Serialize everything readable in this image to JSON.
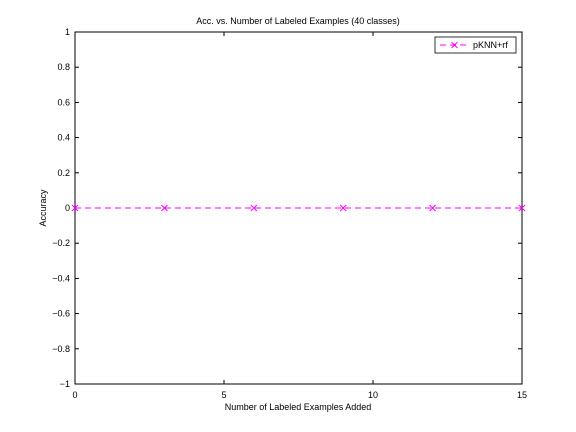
{
  "chart_data": {
    "type": "line",
    "title": "Acc. vs. Number of Labeled Examples (40 classes)",
    "xlabel": "Number of Labeled Examples Added",
    "ylabel": "Accuracy",
    "xlim": [
      0,
      15
    ],
    "ylim": [
      -1,
      1
    ],
    "xticks": [
      0,
      5,
      10,
      15
    ],
    "yticks": [
      -1,
      -0.8,
      -0.6,
      -0.4,
      -0.2,
      0,
      0.2,
      0.4,
      0.6,
      0.8,
      1
    ],
    "xtick_labels": [
      "0",
      "5",
      "10",
      "15"
    ],
    "ytick_labels": [
      "−1",
      "−0.8",
      "−0.6",
      "−0.4",
      "−0.2",
      "0",
      "0.2",
      "0.4",
      "0.6",
      "0.8",
      "1"
    ],
    "grid": false,
    "legend_position": "top-right",
    "series": [
      {
        "name": "pKNN+rf",
        "color": "#ff00ff",
        "line_style": "dashed",
        "marker": "x",
        "x": [
          0,
          3,
          6,
          9,
          12,
          15
        ],
        "y": [
          0,
          0,
          0,
          0,
          0,
          0
        ]
      }
    ]
  }
}
